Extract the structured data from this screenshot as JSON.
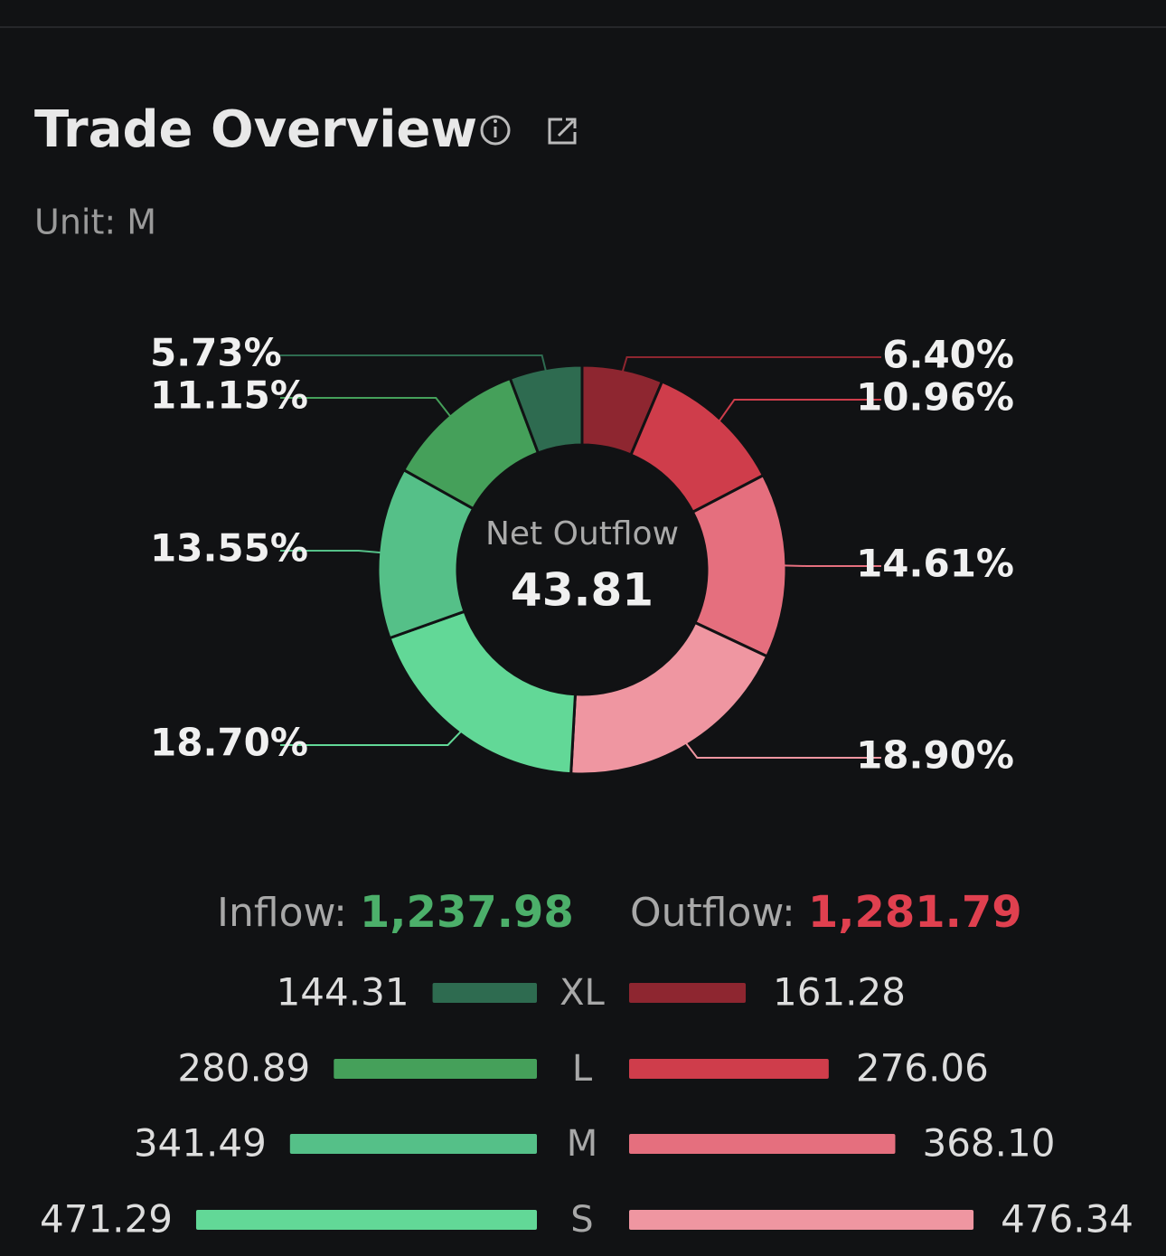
{
  "header": {
    "title": "Trade Overview",
    "unit": "Unit: M"
  },
  "chart_data": [
    {
      "type": "pie",
      "center_label": "Net Outflow",
      "center_value": 43.81,
      "values": [
        6.4,
        10.96,
        14.61,
        18.9,
        18.7,
        13.55,
        11.15,
        5.73
      ],
      "value_labels": [
        "6.40%",
        "10.96%",
        "14.61%",
        "18.90%",
        "18.70%",
        "13.55%",
        "11.15%",
        "5.73%"
      ],
      "colors": [
        "#8e2630",
        "#cf3d4b",
        "#e56f7e",
        "#ef96a1",
        "#62d897",
        "#55c088",
        "#45a05a",
        "#2e6b50"
      ]
    },
    {
      "type": "bar",
      "categories": [
        "XL",
        "L",
        "M",
        "S"
      ],
      "series": [
        {
          "name": "Inflow:",
          "total": {
            "value": 1237.98,
            "label": "1,237.98"
          },
          "total_color": "#4caf6a",
          "colors": [
            "#2e6b50",
            "#45a05a",
            "#55c088",
            "#62d897"
          ],
          "values": [
            144.31,
            280.89,
            341.49,
            471.29
          ],
          "value_labels": [
            "144.31",
            "280.89",
            "341.49",
            "471.29"
          ]
        },
        {
          "name": "Outflow:",
          "total": {
            "value": 1281.79,
            "label": "1,281.79"
          },
          "total_color": "#e0404f",
          "colors": [
            "#8e2630",
            "#cf3d4b",
            "#e56f7e",
            "#ef96a1"
          ],
          "values": [
            161.28,
            276.06,
            368.1,
            476.34
          ],
          "value_labels": [
            "161.28",
            "276.06",
            "368.10",
            "476.34"
          ]
        }
      ]
    }
  ]
}
